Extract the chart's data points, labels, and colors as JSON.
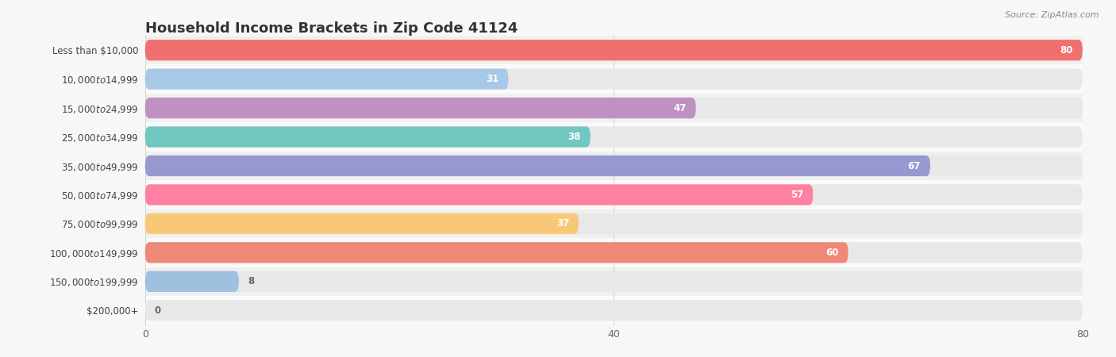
{
  "title": "Household Income Brackets in Zip Code 41124",
  "source": "Source: ZipAtlas.com",
  "categories": [
    "Less than $10,000",
    "$10,000 to $14,999",
    "$15,000 to $24,999",
    "$25,000 to $34,999",
    "$35,000 to $49,999",
    "$50,000 to $74,999",
    "$75,000 to $99,999",
    "$100,000 to $149,999",
    "$150,000 to $199,999",
    "$200,000+"
  ],
  "values": [
    80,
    31,
    47,
    38,
    67,
    57,
    37,
    60,
    8,
    0
  ],
  "bar_colors": [
    "#F07070",
    "#A8C8E8",
    "#C090C0",
    "#70C8C0",
    "#9898D0",
    "#FF80A0",
    "#F8C878",
    "#F08878",
    "#A0C0E0",
    "#C8A8CC"
  ],
  "xlim": [
    0,
    80
  ],
  "xticks": [
    0,
    40,
    80
  ],
  "background_color": "#f7f7f7",
  "bar_bg_color": "#e8e8e8",
  "row_bg_even": "#f0f0f0",
  "row_bg_odd": "#fafafa",
  "title_fontsize": 13,
  "label_fontsize": 8.5,
  "value_fontsize": 8.5,
  "bar_height": 0.72
}
